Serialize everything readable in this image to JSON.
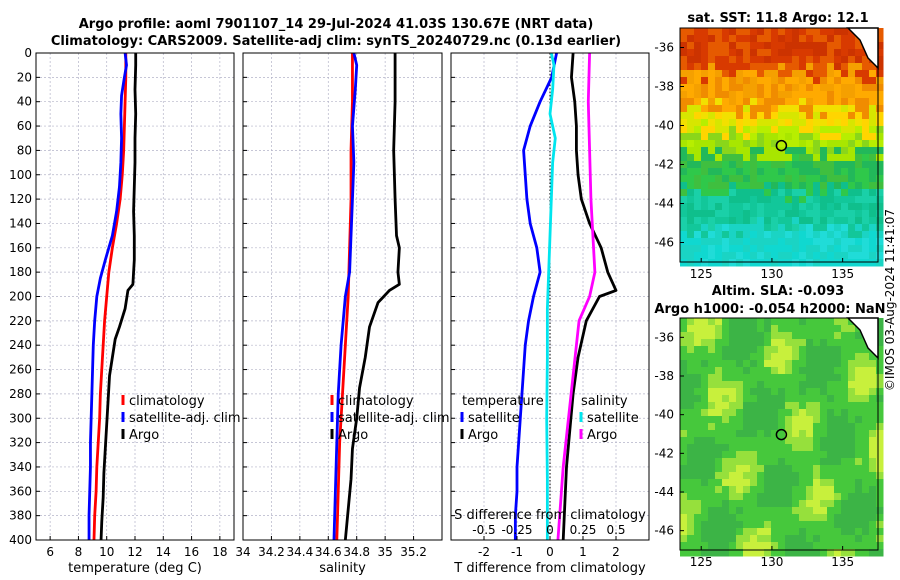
{
  "header": {
    "title_line1": "Argo profile: aoml 7901107_14 29-Jul-2024 41.03S 130.67E (NRT data)",
    "title_line2": "Climatology: CARS2009. Satellite-adj clim: synTS_20240729.nc (0.13d earlier)"
  },
  "footer": {
    "credit": "©IMOS 03-Aug-2024 11:41:07"
  },
  "colors": {
    "climatology": "#ff0000",
    "satellite": "#0000ff",
    "argo": "#000000",
    "t_satellite": "#0000ff",
    "t_argo": "#000000",
    "s_satellite": "#00e5ee",
    "s_argo": "#ff00ff"
  },
  "chart_data": [
    {
      "id": "temperature",
      "type": "line",
      "xlabel": "temperature (deg C)",
      "ylabel": "depth",
      "xlim": [
        5,
        19
      ],
      "ylim": [
        400,
        0
      ],
      "xticks": [
        6,
        8,
        10,
        12,
        14,
        16,
        18
      ],
      "yticks": [
        0,
        20,
        40,
        60,
        80,
        100,
        120,
        140,
        160,
        180,
        200,
        220,
        240,
        260,
        280,
        300,
        320,
        340,
        360,
        380,
        400
      ],
      "legend": {
        "position": "lower-right",
        "entries": [
          "climatology",
          "satellite-adj. clim",
          "Argo"
        ]
      },
      "series": [
        {
          "name": "climatology",
          "color": "climatology",
          "points": [
            [
              11.35,
              0
            ],
            [
              11.35,
              20
            ],
            [
              11.3,
              40
            ],
            [
              11.25,
              60
            ],
            [
              11.2,
              80
            ],
            [
              11.1,
              100
            ],
            [
              10.95,
              120
            ],
            [
              10.7,
              140
            ],
            [
              10.4,
              160
            ],
            [
              10.15,
              180
            ],
            [
              10.0,
              200
            ],
            [
              9.85,
              220
            ],
            [
              9.75,
              240
            ],
            [
              9.65,
              260
            ],
            [
              9.55,
              280
            ],
            [
              9.5,
              300
            ],
            [
              9.4,
              320
            ],
            [
              9.3,
              340
            ],
            [
              9.25,
              360
            ],
            [
              9.15,
              380
            ],
            [
              9.1,
              400
            ]
          ]
        },
        {
          "name": "satellite-adj. clim",
          "color": "satellite",
          "points": [
            [
              11.3,
              0
            ],
            [
              11.4,
              10
            ],
            [
              11.25,
              20
            ],
            [
              11.05,
              35
            ],
            [
              11.0,
              50
            ],
            [
              11.05,
              70
            ],
            [
              11.0,
              90
            ],
            [
              10.9,
              110
            ],
            [
              10.7,
              130
            ],
            [
              10.4,
              150
            ],
            [
              9.9,
              170
            ],
            [
              9.55,
              185
            ],
            [
              9.3,
              200
            ],
            [
              9.15,
              220
            ],
            [
              9.05,
              240
            ],
            [
              9.0,
              260
            ],
            [
              8.95,
              280
            ],
            [
              8.9,
              300
            ],
            [
              8.85,
              320
            ],
            [
              8.85,
              340
            ],
            [
              8.8,
              360
            ],
            [
              8.75,
              380
            ],
            [
              8.75,
              400
            ]
          ]
        },
        {
          "name": "Argo",
          "color": "argo",
          "points": [
            [
              12.05,
              0
            ],
            [
              12.05,
              10
            ],
            [
              12.0,
              30
            ],
            [
              12.05,
              50
            ],
            [
              12.0,
              70
            ],
            [
              12.0,
              90
            ],
            [
              11.95,
              110
            ],
            [
              11.9,
              130
            ],
            [
              11.95,
              150
            ],
            [
              11.95,
              170
            ],
            [
              11.85,
              190
            ],
            [
              11.5,
              195
            ],
            [
              11.3,
              210
            ],
            [
              10.9,
              225
            ],
            [
              10.6,
              235
            ],
            [
              10.4,
              250
            ],
            [
              10.2,
              265
            ],
            [
              10.1,
              285
            ],
            [
              10.0,
              305
            ],
            [
              9.9,
              325
            ],
            [
              9.8,
              345
            ],
            [
              9.75,
              365
            ],
            [
              9.65,
              385
            ],
            [
              9.6,
              400
            ]
          ]
        }
      ]
    },
    {
      "id": "salinity",
      "type": "line",
      "xlabel": "salinity",
      "ylim": [
        400,
        0
      ],
      "xlim": [
        34,
        35.4
      ],
      "xticks": [
        34,
        34.2,
        34.4,
        34.6,
        34.8,
        35,
        35.2
      ],
      "legend": {
        "position": "lower-right",
        "entries": [
          "climatology",
          "satellite-adj. clim",
          "Argo"
        ]
      },
      "series": [
        {
          "name": "climatology",
          "color": "climatology",
          "points": [
            [
              34.77,
              0
            ],
            [
              34.77,
              40
            ],
            [
              34.76,
              80
            ],
            [
              34.76,
              120
            ],
            [
              34.75,
              160
            ],
            [
              34.74,
              200
            ],
            [
              34.72,
              240
            ],
            [
              34.7,
              280
            ],
            [
              34.68,
              320
            ],
            [
              34.67,
              360
            ],
            [
              34.66,
              400
            ]
          ]
        },
        {
          "name": "satellite-adj. clim",
          "color": "satellite",
          "points": [
            [
              34.78,
              0
            ],
            [
              34.8,
              10
            ],
            [
              34.79,
              30
            ],
            [
              34.77,
              60
            ],
            [
              34.78,
              90
            ],
            [
              34.77,
              120
            ],
            [
              34.76,
              150
            ],
            [
              34.75,
              180
            ],
            [
              34.72,
              200
            ],
            [
              34.69,
              240
            ],
            [
              34.67,
              280
            ],
            [
              34.66,
              320
            ],
            [
              34.65,
              360
            ],
            [
              34.64,
              400
            ]
          ]
        },
        {
          "name": "Argo",
          "color": "argo",
          "points": [
            [
              35.07,
              0
            ],
            [
              35.07,
              40
            ],
            [
              35.06,
              80
            ],
            [
              35.07,
              120
            ],
            [
              35.08,
              150
            ],
            [
              35.1,
              160
            ],
            [
              35.09,
              180
            ],
            [
              35.1,
              190
            ],
            [
              35.03,
              195
            ],
            [
              34.95,
              205
            ],
            [
              34.89,
              225
            ],
            [
              34.86,
              250
            ],
            [
              34.82,
              275
            ],
            [
              34.8,
              300
            ],
            [
              34.77,
              325
            ],
            [
              34.76,
              350
            ],
            [
              34.74,
              375
            ],
            [
              34.72,
              400
            ]
          ]
        }
      ]
    },
    {
      "id": "difference",
      "type": "line",
      "xlabel": "T difference from climatology",
      "xlabel_top": "S difference from climatology",
      "xlim": [
        -3,
        3
      ],
      "xticks": [
        -2,
        -1,
        0,
        1,
        2
      ],
      "xticks_top": [
        -0.5,
        -0.25,
        0,
        0.25,
        0.5
      ],
      "xticks_top_labels": [
        "-0.5",
        "-0.25",
        "0",
        "0.25",
        "0.5"
      ],
      "ylim": [
        400,
        0
      ],
      "legend_left": {
        "title": "temperature",
        "entries": [
          "satellite",
          "Argo"
        ]
      },
      "legend_right": {
        "title": "salinity",
        "entries": [
          "satellite",
          "Argo"
        ]
      },
      "series": [
        {
          "name": "T satellite",
          "color": "t_satellite",
          "points": [
            [
              0.2,
              0
            ],
            [
              0.05,
              20
            ],
            [
              -0.3,
              40
            ],
            [
              -0.6,
              60
            ],
            [
              -0.8,
              80
            ],
            [
              -0.75,
              100
            ],
            [
              -0.7,
              120
            ],
            [
              -0.6,
              140
            ],
            [
              -0.4,
              160
            ],
            [
              -0.3,
              180
            ],
            [
              -0.5,
              200
            ],
            [
              -0.65,
              220
            ],
            [
              -0.75,
              240
            ],
            [
              -0.8,
              260
            ],
            [
              -0.85,
              280
            ],
            [
              -0.9,
              300
            ],
            [
              -0.95,
              320
            ],
            [
              -1.0,
              340
            ],
            [
              -1.0,
              360
            ],
            [
              -1.05,
              380
            ],
            [
              -1.05,
              400
            ]
          ]
        },
        {
          "name": "T Argo",
          "color": "t_argo",
          "points": [
            [
              0.7,
              0
            ],
            [
              0.65,
              20
            ],
            [
              0.75,
              40
            ],
            [
              0.8,
              60
            ],
            [
              0.8,
              80
            ],
            [
              0.85,
              100
            ],
            [
              0.95,
              120
            ],
            [
              1.2,
              140
            ],
            [
              1.55,
              160
            ],
            [
              1.75,
              180
            ],
            [
              2.0,
              195
            ],
            [
              1.5,
              200
            ],
            [
              1.1,
              220
            ],
            [
              0.85,
              250
            ],
            [
              0.7,
              280
            ],
            [
              0.6,
              310
            ],
            [
              0.5,
              340
            ],
            [
              0.45,
              370
            ],
            [
              0.4,
              400
            ]
          ]
        },
        {
          "name": "S satellite",
          "color": "s_satellite",
          "points": [
            [
              0.01,
              0
            ],
            [
              0.03,
              10
            ],
            [
              0.02,
              30
            ],
            [
              0.0,
              50
            ],
            [
              0.04,
              70
            ],
            [
              0.02,
              90
            ],
            [
              0.01,
              120
            ],
            [
              0.0,
              150
            ],
            [
              -0.01,
              180
            ],
            [
              -0.02,
              210
            ],
            [
              -0.02,
              250
            ],
            [
              -0.025,
              300
            ],
            [
              -0.02,
              350
            ],
            [
              -0.02,
              400
            ]
          ]
        },
        {
          "name": "S Argo",
          "color": "s_argo",
          "points": [
            [
              0.3,
              0
            ],
            [
              0.29,
              40
            ],
            [
              0.3,
              80
            ],
            [
              0.31,
              120
            ],
            [
              0.33,
              160
            ],
            [
              0.34,
              180
            ],
            [
              0.3,
              200
            ],
            [
              0.22,
              220
            ],
            [
              0.18,
              260
            ],
            [
              0.14,
              300
            ],
            [
              0.1,
              340
            ],
            [
              0.08,
              370
            ],
            [
              0.06,
              400
            ]
          ]
        }
      ]
    }
  ],
  "maps": {
    "sst": {
      "title": "sat. SST: 11.8 Argo: 12.1",
      "xticks": [
        125,
        130,
        135
      ],
      "yticks": [
        -36,
        -38,
        -40,
        -42,
        -44,
        -46
      ],
      "xlim": [
        123.5,
        137.5
      ],
      "ylim": [
        -47,
        -35
      ],
      "marker": [
        130.67,
        -41.03
      ]
    },
    "sla": {
      "title_line1": "Altim. SLA: -0.093",
      "title_line2": "Argo h1000: -0.054 h2000: NaN",
      "xticks": [
        125,
        130,
        135
      ],
      "yticks": [
        -36,
        -38,
        -40,
        -42,
        -44,
        -46
      ],
      "xlim": [
        123.5,
        137.5
      ],
      "ylim": [
        -47,
        -35
      ],
      "marker": [
        130.67,
        -41.03
      ]
    }
  }
}
